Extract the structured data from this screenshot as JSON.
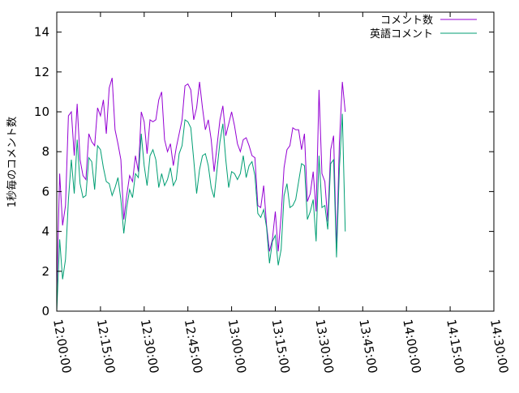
{
  "chart_data": {
    "type": "line",
    "title": "",
    "xlabel": "",
    "ylabel": "1秒毎のコメント数",
    "xlim": [
      "12:00:00",
      "14:30:00"
    ],
    "ylim": [
      0,
      15
    ],
    "yticks": [
      0,
      2,
      4,
      6,
      8,
      10,
      12,
      14
    ],
    "xtick_labels": [
      "12:00:00",
      "12:15:00",
      "12:30:00",
      "12:45:00",
      "13:00:00",
      "13:15:00",
      "13:30:00",
      "13:45:00",
      "14:00:00",
      "14:15:00",
      "14:30:00"
    ],
    "grid": false,
    "legend_position": "top-right",
    "time_step_minutes": 1,
    "series": [
      {
        "name": "コメント数",
        "color": "#9400d3",
        "values": [
          1.0,
          6.9,
          4.3,
          5.3,
          9.8,
          10.0,
          7.8,
          10.4,
          7.6,
          6.8,
          6.6,
          8.9,
          8.5,
          8.3,
          10.2,
          9.8,
          10.6,
          8.9,
          11.2,
          11.7,
          9.1,
          8.4,
          7.6,
          4.6,
          5.8,
          6.8,
          6.5,
          7.8,
          7.0,
          10.0,
          9.5,
          7.9,
          9.6,
          9.5,
          9.6,
          10.6,
          11.0,
          8.6,
          8.0,
          8.4,
          7.3,
          8.2,
          8.9,
          9.6,
          11.3,
          11.4,
          11.1,
          9.6,
          10.2,
          11.5,
          10.2,
          9.1,
          9.6,
          8.6,
          7.0,
          8.3,
          9.6,
          10.3,
          8.8,
          9.4,
          10.0,
          9.3,
          8.4,
          8.0,
          8.6,
          8.7,
          8.3,
          7.8,
          7.7,
          5.3,
          5.2,
          6.3,
          4.3,
          3.0,
          3.6,
          5.0,
          3.0,
          4.8,
          7.2,
          8.1,
          8.3,
          9.2,
          9.1,
          9.1,
          8.1,
          8.9,
          5.5,
          5.9,
          7.0,
          5.0,
          11.1,
          6.9,
          6.5,
          4.5,
          8.1,
          8.8,
          3.1,
          8.5,
          11.5,
          10.0
        ]
      },
      {
        "name": "英語コメント",
        "color": "#009e73",
        "values": [
          0.0,
          3.6,
          1.6,
          2.6,
          5.6,
          7.6,
          5.9,
          8.6,
          6.4,
          5.7,
          5.8,
          7.7,
          7.5,
          6.1,
          8.3,
          8.1,
          7.2,
          6.5,
          6.4,
          5.8,
          6.2,
          6.7,
          5.6,
          3.9,
          5.2,
          6.1,
          5.7,
          6.9,
          6.7,
          8.9,
          7.3,
          6.3,
          7.8,
          8.1,
          7.6,
          6.2,
          6.9,
          6.3,
          6.6,
          7.2,
          6.3,
          6.6,
          7.9,
          8.3,
          9.6,
          9.5,
          9.2,
          7.6,
          5.9,
          7.1,
          7.8,
          7.9,
          7.3,
          6.2,
          5.7,
          7.1,
          8.5,
          9.4,
          7.6,
          6.2,
          7.0,
          6.9,
          6.6,
          6.9,
          7.8,
          6.7,
          7.3,
          7.5,
          6.8,
          4.9,
          4.7,
          5.1,
          4.2,
          2.4,
          3.5,
          3.8,
          2.3,
          3.1,
          5.8,
          6.4,
          5.2,
          5.3,
          5.6,
          6.5,
          7.4,
          7.3,
          4.6,
          5.0,
          5.6,
          3.5,
          7.8,
          5.2,
          5.3,
          4.1,
          7.4,
          7.6,
          2.7,
          7.2,
          9.9,
          4.0
        ]
      }
    ]
  }
}
